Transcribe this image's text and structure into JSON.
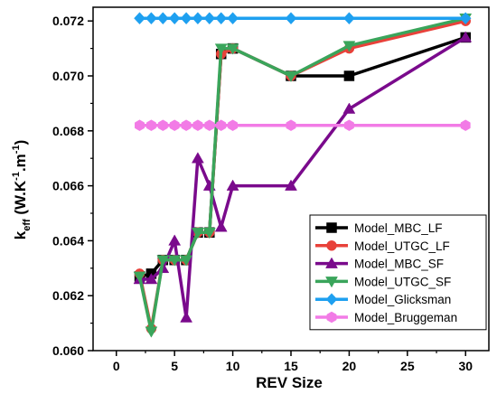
{
  "chart_data": {
    "type": "line",
    "title": "",
    "xlabel": "REV Size",
    "ylabel": {
      "base": "k",
      "subscript": "eff",
      "unit_prefix": " (W.K",
      "exp1": "-1",
      "unit_mid": ".m",
      "exp2": "-1",
      "unit_suffix": ")"
    },
    "xlim": [
      -2,
      32
    ],
    "ylim": [
      0.06,
      0.0725
    ],
    "xticks": [
      0,
      5,
      10,
      15,
      20,
      25,
      30
    ],
    "xtick_labels": [
      "0",
      "5",
      "10",
      "15",
      "20",
      "25",
      "30"
    ],
    "yticks": [
      0.06,
      0.062,
      0.064,
      0.066,
      0.068,
      0.07,
      0.072
    ],
    "ytick_labels": [
      "0.060",
      "0.062",
      "0.064",
      "0.066",
      "0.068",
      "0.070",
      "0.072"
    ],
    "grid": false,
    "legend_position": "bottom-right",
    "series": [
      {
        "name": "Model_MBC_LF",
        "color": "#000000",
        "marker": "square",
        "x": [
          2,
          3,
          4,
          5,
          6,
          7,
          8,
          9,
          10,
          15,
          20,
          30
        ],
        "y": [
          0.0627,
          0.0628,
          0.0633,
          0.0633,
          0.0633,
          0.0643,
          0.0643,
          0.0708,
          0.071,
          0.07,
          0.07,
          0.0714
        ]
      },
      {
        "name": "Model_UTGC_LF",
        "color": "#e8413a",
        "marker": "circle",
        "x": [
          2,
          3,
          4,
          5,
          6,
          7,
          8,
          9,
          10,
          15,
          20,
          30
        ],
        "y": [
          0.0628,
          0.0608,
          0.0633,
          0.0633,
          0.0633,
          0.0643,
          0.0643,
          0.0708,
          0.071,
          0.07,
          0.071,
          0.072
        ]
      },
      {
        "name": "Model_MBC_SF",
        "color": "#7a0a8c",
        "marker": "triangle-up",
        "x": [
          2,
          3,
          4,
          5,
          6,
          7,
          8,
          9,
          10,
          15,
          20,
          30
        ],
        "y": [
          0.0626,
          0.0626,
          0.063,
          0.064,
          0.0612,
          0.067,
          0.066,
          0.0645,
          0.066,
          0.066,
          0.0688,
          0.0714
        ]
      },
      {
        "name": "Model_UTGC_SF",
        "color": "#3aa55b",
        "marker": "triangle-down",
        "x": [
          2,
          3,
          4,
          5,
          6,
          7,
          8,
          9,
          10,
          15,
          20,
          30
        ],
        "y": [
          0.0627,
          0.0607,
          0.0633,
          0.0633,
          0.0633,
          0.0643,
          0.0643,
          0.071,
          0.071,
          0.07,
          0.0711,
          0.0721
        ]
      },
      {
        "name": "Model_Glicksman",
        "color": "#1ea0f0",
        "marker": "diamond",
        "x": [
          2,
          3,
          4,
          5,
          6,
          7,
          8,
          9,
          10,
          15,
          20,
          30
        ],
        "y": [
          0.0721,
          0.0721,
          0.0721,
          0.0721,
          0.0721,
          0.0721,
          0.0721,
          0.0721,
          0.0721,
          0.0721,
          0.0721,
          0.0721
        ]
      },
      {
        "name": "Model_Bruggeman",
        "color": "#f27be6",
        "marker": "hexagon",
        "x": [
          2,
          3,
          4,
          5,
          6,
          7,
          8,
          9,
          10,
          15,
          20,
          30
        ],
        "y": [
          0.0682,
          0.0682,
          0.0682,
          0.0682,
          0.0682,
          0.0682,
          0.0682,
          0.0682,
          0.0682,
          0.0682,
          0.0682,
          0.0682
        ]
      }
    ]
  }
}
